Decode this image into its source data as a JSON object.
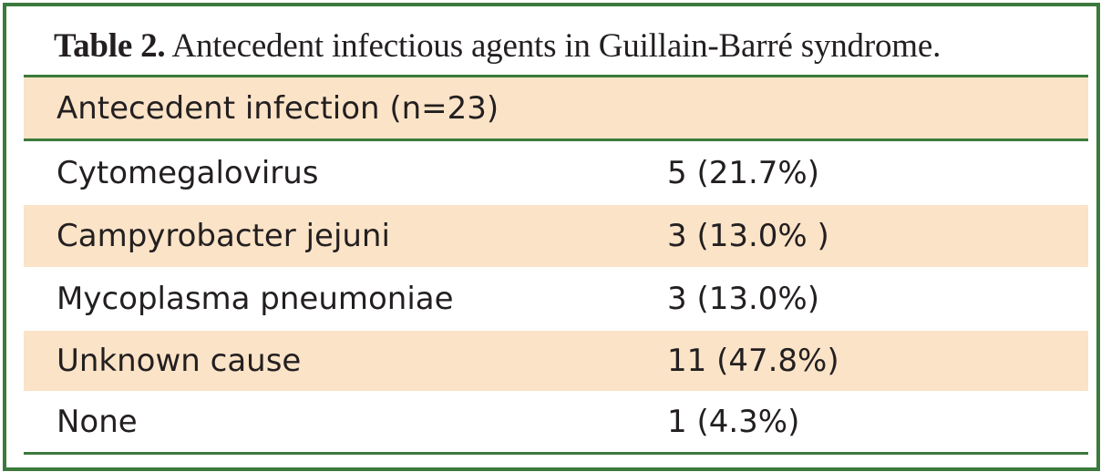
{
  "caption": {
    "label": "Table 2.",
    "text": " Antecedent infectious agents in Guillain-Barré syndrome."
  },
  "header": {
    "col1": "Antecedent infection (n=23)",
    "col2": ""
  },
  "rows": [
    {
      "agent": "Cytomegalovirus",
      "value": "5 (21.7%)"
    },
    {
      "agent": "Campyrobacter jejuni",
      "value": "3 (13.0% )"
    },
    {
      "agent": "Mycoplasma pneumoniae",
      "value": "3 (13.0%)"
    },
    {
      "agent": "Unknown cause",
      "value": "11 (47.8%)"
    },
    {
      "agent": "None",
      "value": "1 (4.3%)"
    }
  ],
  "colors": {
    "border": "#3b7a3c",
    "shade": "#fbe3c7",
    "text": "#231f20"
  }
}
